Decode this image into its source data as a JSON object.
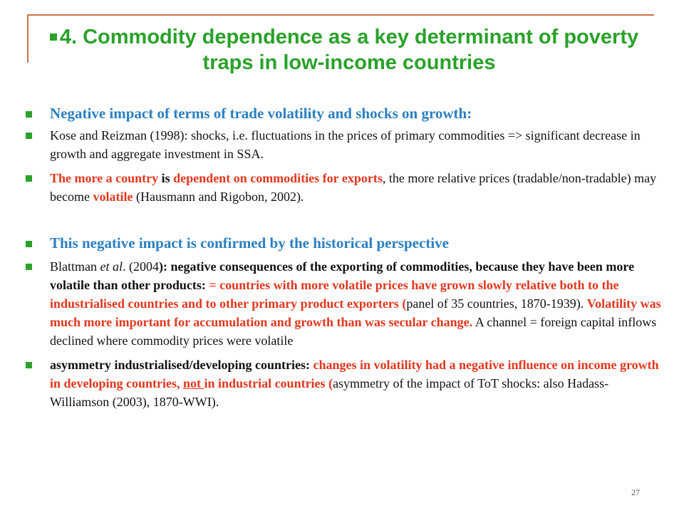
{
  "slide": {
    "title": "4. Commodity dependence as a key determinant of poverty traps in low-income countries",
    "page_number": "27"
  },
  "bullets": {
    "b1": "Negative impact of terms of trade volatility and shocks on growth:",
    "b2": "Kose and Reizman (1998): shocks, i.e. fluctuations in the prices of primary commodities => significant decrease in growth and aggregate investment in SSA.",
    "b3": {
      "s1": "The more a country",
      "s2": " is ",
      "s3": "dependent on commodities for exports",
      "s4": ", the more relative prices (tradable/non-tradable) may become ",
      "s5": "volatile",
      "s6": " (Hausmann and Rigobon, 2002)."
    },
    "b4": "This negative impact is confirmed by the historical perspective",
    "b5": {
      "s1": "Blattman ",
      "s2": "et al",
      "s3": ". (2004",
      "s4": "): negative consequences of the exporting of commodities, because they have been more volatile than other products: ",
      "s5": "= countries with more volatile prices have grown slowly relative both to the industrialised countries and to other primary product exporters (",
      "s6": "panel of 35 countries, 1870-1939). ",
      "s7": "Volatility was much more important for accumulation and growth than was secular change.",
      "s8": " A channel = foreign capital inflows declined where commodity prices were volatile"
    },
    "b6": {
      "s1": "asymmetry industrialised/developing countries:",
      "s2": "  changes in volatility had a negative influence on income growth in developing countries, ",
      "s3": "not ",
      "s4": "in industrial countries (",
      "s5": "asymmetry of the impact of ToT shocks: also Hadass-Williamson (2003), 1870-WWI)."
    }
  }
}
